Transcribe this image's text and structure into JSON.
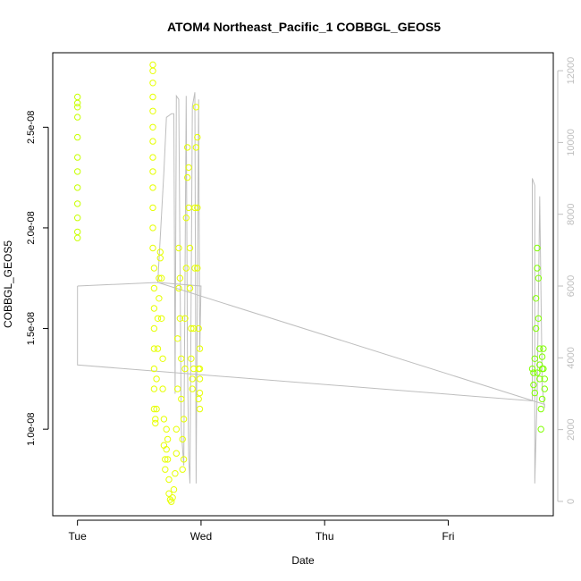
{
  "chart_data": {
    "type": "scatter",
    "title": "ATOM4 Northeast_Pacific_1 COBBGL_GEOS5",
    "xlabel": "Date",
    "ylabel": "COBBGL_GEOS5",
    "x_ticks": [
      {
        "x": 0,
        "label": "Tue"
      },
      {
        "x": 1,
        "label": "Wed"
      },
      {
        "x": 2,
        "label": "Thu"
      },
      {
        "x": 3,
        "label": "Fri"
      }
    ],
    "y_ticks": [
      {
        "y": 1e-08,
        "label": "1.0e-08"
      },
      {
        "y": 1.5e-08,
        "label": "1.5e-08"
      },
      {
        "y": 2e-08,
        "label": "2.0e-08"
      },
      {
        "y": 2.5e-08,
        "label": "2.5e-08"
      }
    ],
    "y2_ticks": [
      {
        "y": 0,
        "label": "0"
      },
      {
        "y": 2000,
        "label": "2000"
      },
      {
        "y": 4000,
        "label": "4000"
      },
      {
        "y": 6000,
        "label": "6000"
      },
      {
        "y": 8000,
        "label": "8000"
      },
      {
        "y": 10000,
        "label": "10000"
      },
      {
        "y": 12000,
        "label": "12000"
      }
    ],
    "xlim": [
      -0.2,
      3.85
    ],
    "ylim": [
      5.7e-09,
      2.87e-08
    ],
    "y2lim": [
      -400,
      12500
    ],
    "colors": {
      "yellow": "#e6ff00",
      "yellow_green": "#c8ff00",
      "green": "#80ff00",
      "altitude_line": "#bebebe",
      "axis": "#000000",
      "right_axis": "#bebebe"
    },
    "series": [
      {
        "role": "co_points",
        "marker": "circle",
        "points": [
          [
            0.0,
            2.65e-08
          ],
          [
            0.0,
            2.62e-08
          ],
          [
            0.0,
            2.6e-08
          ],
          [
            0.0,
            2.55e-08
          ],
          [
            0.0,
            2.45e-08
          ],
          [
            0.0,
            2.35e-08
          ],
          [
            0.0,
            2.28e-08
          ],
          [
            0.0,
            2.2e-08
          ],
          [
            0.0,
            2.12e-08
          ],
          [
            0.0,
            2.05e-08
          ],
          [
            0.0,
            1.98e-08
          ],
          [
            0.0,
            1.95e-08
          ],
          [
            0.61,
            2.81e-08
          ],
          [
            0.61,
            2.78e-08
          ],
          [
            0.61,
            2.72e-08
          ],
          [
            0.61,
            2.65e-08
          ],
          [
            0.61,
            2.58e-08
          ],
          [
            0.61,
            2.5e-08
          ],
          [
            0.61,
            2.43e-08
          ],
          [
            0.61,
            2.35e-08
          ],
          [
            0.61,
            2.28e-08
          ],
          [
            0.61,
            2.2e-08
          ],
          [
            0.61,
            2.1e-08
          ],
          [
            0.61,
            2e-08
          ],
          [
            0.61,
            1.9e-08
          ],
          [
            0.62,
            1.8e-08
          ],
          [
            0.62,
            1.7e-08
          ],
          [
            0.62,
            1.6e-08
          ],
          [
            0.62,
            1.5e-08
          ],
          [
            0.62,
            1.4e-08
          ],
          [
            0.62,
            1.3e-08
          ],
          [
            0.62,
            1.2e-08
          ],
          [
            0.62,
            1.1e-08
          ],
          [
            0.63,
            1.05e-08
          ],
          [
            0.63,
            1.03e-08
          ],
          [
            0.64,
            1.1e-08
          ],
          [
            0.64,
            1.25e-08
          ],
          [
            0.65,
            1.4e-08
          ],
          [
            0.65,
            1.55e-08
          ],
          [
            0.66,
            1.65e-08
          ],
          [
            0.66,
            1.75e-08
          ],
          [
            0.67,
            1.85e-08
          ],
          [
            0.67,
            1.88e-08
          ],
          [
            0.68,
            1.75e-08
          ],
          [
            0.68,
            1.55e-08
          ],
          [
            0.69,
            1.35e-08
          ],
          [
            0.69,
            1.2e-08
          ],
          [
            0.7,
            1.05e-08
          ],
          [
            0.7,
            9.2e-09
          ],
          [
            0.71,
            8.5e-09
          ],
          [
            0.71,
            8e-09
          ],
          [
            0.72,
            9e-09
          ],
          [
            0.72,
            1e-08
          ],
          [
            0.73,
            9.5e-09
          ],
          [
            0.73,
            8.5e-09
          ],
          [
            0.74,
            7.5e-09
          ],
          [
            0.74,
            6.8e-09
          ],
          [
            0.75,
            6.5e-09
          ],
          [
            0.76,
            6.4e-09
          ],
          [
            0.77,
            6.6e-09
          ],
          [
            0.78,
            7e-09
          ],
          [
            0.79,
            7.8e-09
          ],
          [
            0.8,
            8.8e-09
          ],
          [
            0.8,
            1e-08
          ],
          [
            0.81,
            1.2e-08
          ],
          [
            0.81,
            1.45e-08
          ],
          [
            0.82,
            1.7e-08
          ],
          [
            0.82,
            1.9e-08
          ],
          [
            0.83,
            1.75e-08
          ],
          [
            0.83,
            1.55e-08
          ],
          [
            0.84,
            1.35e-08
          ],
          [
            0.84,
            1.15e-08
          ],
          [
            0.85,
            9.5e-09
          ],
          [
            0.85,
            8e-09
          ],
          [
            0.86,
            8.5e-09
          ],
          [
            0.86,
            1.05e-08
          ],
          [
            0.87,
            1.3e-08
          ],
          [
            0.87,
            1.55e-08
          ],
          [
            0.88,
            1.8e-08
          ],
          [
            0.88,
            2.05e-08
          ],
          [
            0.89,
            2.25e-08
          ],
          [
            0.89,
            2.4e-08
          ],
          [
            0.9,
            2.3e-08
          ],
          [
            0.9,
            2.1e-08
          ],
          [
            0.91,
            1.9e-08
          ],
          [
            0.91,
            1.7e-08
          ],
          [
            0.92,
            1.5e-08
          ],
          [
            0.92,
            1.35e-08
          ],
          [
            0.93,
            1.25e-08
          ],
          [
            0.93,
            1.2e-08
          ],
          [
            0.94,
            1.3e-08
          ],
          [
            0.94,
            1.5e-08
          ],
          [
            0.95,
            1.8e-08
          ],
          [
            0.95,
            2.1e-08
          ],
          [
            0.96,
            2.4e-08
          ],
          [
            0.96,
            2.6e-08
          ],
          [
            0.97,
            2.45e-08
          ],
          [
            0.97,
            2.1e-08
          ],
          [
            0.97,
            1.8e-08
          ],
          [
            0.98,
            1.5e-08
          ],
          [
            0.98,
            1.3e-08
          ],
          [
            0.98,
            1.15e-08
          ],
          [
            0.99,
            1.25e-08
          ],
          [
            0.99,
            1.4e-08
          ],
          [
            0.99,
            1.3e-08
          ],
          [
            0.99,
            1.18e-08
          ],
          [
            0.99,
            1.1e-08
          ]
        ]
      },
      {
        "role": "co_points_late",
        "marker": "circle",
        "points": [
          [
            3.68,
            1.3e-08
          ],
          [
            3.69,
            1.22e-08
          ],
          [
            3.7,
            1.35e-08
          ],
          [
            3.71,
            1.5e-08
          ],
          [
            3.71,
            1.65e-08
          ],
          [
            3.72,
            1.8e-08
          ],
          [
            3.72,
            1.9e-08
          ],
          [
            3.73,
            1.75e-08
          ],
          [
            3.73,
            1.55e-08
          ],
          [
            3.74,
            1.4e-08
          ],
          [
            3.74,
            1.25e-08
          ],
          [
            3.75,
            1.1e-08
          ],
          [
            3.75,
            1e-08
          ],
          [
            3.76,
            1.15e-08
          ],
          [
            3.76,
            1.3e-08
          ],
          [
            3.77,
            1.4e-08
          ],
          [
            3.77,
            1.3e-08
          ],
          [
            3.78,
            1.2e-08
          ],
          [
            3.78,
            1.25e-08
          ],
          [
            3.69,
            1.28e-08
          ],
          [
            3.7,
            1.18e-08
          ],
          [
            3.72,
            1.28e-08
          ],
          [
            3.74,
            1.32e-08
          ],
          [
            3.76,
            1.36e-08
          ]
        ]
      },
      {
        "role": "altitude_line",
        "axis": "right",
        "points": [
          [
            0.0,
            6000
          ],
          [
            0.0,
            4500
          ],
          [
            0.0,
            3800
          ],
          [
            3.68,
            2800
          ],
          [
            3.68,
            9000
          ],
          [
            3.7,
            8800
          ],
          [
            3.7,
            500
          ],
          [
            3.72,
            3000
          ],
          [
            3.74,
            8500
          ],
          [
            3.76,
            3200
          ],
          [
            3.78,
            2600
          ],
          [
            3.78,
            2700
          ],
          [
            0.65,
            6100
          ],
          [
            0.7,
            9200
          ],
          [
            0.72,
            10700
          ],
          [
            0.76,
            10800
          ],
          [
            0.78,
            10800
          ],
          [
            0.79,
            3000
          ],
          [
            0.8,
            11300
          ],
          [
            0.82,
            11200
          ],
          [
            0.84,
            2000
          ],
          [
            0.86,
            1000
          ],
          [
            0.88,
            11300
          ],
          [
            0.89,
            4000
          ],
          [
            0.9,
            1200
          ],
          [
            0.91,
            500
          ],
          [
            0.93,
            11000
          ],
          [
            0.95,
            11400
          ],
          [
            0.96,
            500
          ],
          [
            0.98,
            11200
          ],
          [
            0.99,
            4200
          ],
          [
            1.0,
            6000
          ],
          [
            0.65,
            6100
          ],
          [
            0.0,
            6000
          ]
        ]
      }
    ]
  }
}
